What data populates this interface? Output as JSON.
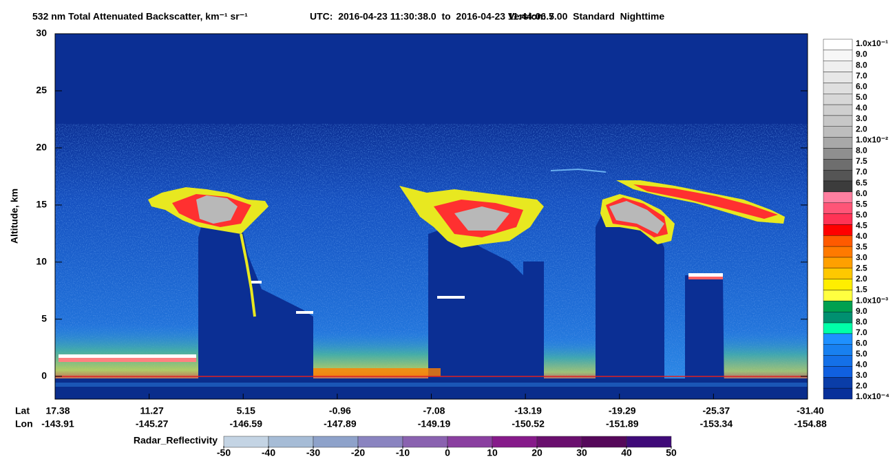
{
  "chart_data": {
    "type": "heatmap",
    "title": "532 nm Total Attenuated Backscatter, km⁻¹ sr⁻¹",
    "time_range": "UTC:  2016-04-23 11:30:38.0  to  2016-04-23 11:44:06.7",
    "version": "Version: 5.00  Standard  Nighttime",
    "y_label": "Altitude, km",
    "ylim": [
      -2,
      30
    ],
    "yticks": [
      0,
      5,
      10,
      15,
      20,
      25,
      30
    ],
    "x_rows": [
      {
        "name": "Lat",
        "labels": [
          "17.38",
          "11.27",
          "5.15",
          "-0.96",
          "-7.08",
          "-13.19",
          "-19.29",
          "-25.37",
          "-31.40"
        ]
      },
      {
        "name": "Lon",
        "labels": [
          "-143.91",
          "-145.27",
          "-146.59",
          "-147.89",
          "-149.19",
          "-150.52",
          "-151.89",
          "-153.34",
          "-154.88"
        ]
      }
    ],
    "colorbar": {
      "labels": [
        "1.0x10⁻¹",
        "9.0",
        "8.0",
        "7.0",
        "6.0",
        "5.0",
        "4.0",
        "3.0",
        "2.0",
        "1.0x10⁻²",
        "8.0",
        "7.5",
        "7.0",
        "6.5",
        "6.0",
        "5.5",
        "5.0",
        "4.5",
        "4.0",
        "3.5",
        "3.0",
        "2.5",
        "2.0",
        "1.5",
        "1.0x10⁻³",
        "9.0",
        "8.0",
        "7.0",
        "6.0",
        "5.0",
        "4.0",
        "3.0",
        "2.0",
        "1.0x10⁻⁴"
      ],
      "colors": [
        "#ffffff",
        "#f7f7f7",
        "#efefef",
        "#e7e7e7",
        "#dfdfdf",
        "#d7d7d7",
        "#cfcfcf",
        "#c7c7c7",
        "#bdbdbd",
        "#a8a8a8",
        "#8f8f8f",
        "#6e6e6e",
        "#555555",
        "#3c3c3c",
        "#ff7fa0",
        "#ff5577",
        "#ff3355",
        "#ff0000",
        "#ff5a00",
        "#ff7a00",
        "#ffa000",
        "#ffc800",
        "#ffee00",
        "#ffff40",
        "#00a050",
        "#009070",
        "#00ffa8",
        "#1e90ff",
        "#1880f0",
        "#1470e8",
        "#1060e0",
        "#0a3da8",
        "#08309a"
      ]
    },
    "radar_colorbar": {
      "label": "Radar_Reflectivity",
      "xlim": [
        -50,
        50
      ],
      "xticks": [
        -50,
        -40,
        -30,
        -20,
        -10,
        0,
        10,
        20,
        30,
        40,
        50
      ],
      "colors": [
        "#c4d4e4",
        "#a6bcd6",
        "#8ea2ca",
        "#8a84c0",
        "#8a62b0",
        "#8a3fa0",
        "#861a8a",
        "#6a0f6e",
        "#55085a",
        "#3f0a78"
      ]
    }
  }
}
